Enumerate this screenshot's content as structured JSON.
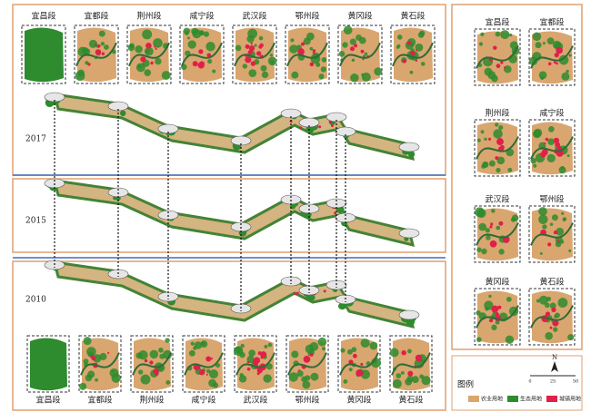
{
  "top_panels": {
    "labels": [
      "宜昌段",
      "宜都段",
      "荆州段",
      "咸宁段",
      "武汉段",
      "鄂州段",
      "黄冈段",
      "黄石段"
    ]
  },
  "bottom_panels": {
    "labels": [
      "宜昌段",
      "宜都段",
      "荆州段",
      "咸宁段",
      "武汉段",
      "鄂州段",
      "黄冈段",
      "黄石段"
    ]
  },
  "side_panels": {
    "labels": [
      "宜昌段",
      "宜都段",
      "荆州段",
      "咸宁段",
      "武汉段",
      "鄂州段",
      "黄冈段",
      "黄石段"
    ]
  },
  "years": [
    "2017",
    "2015",
    "2010"
  ],
  "legend": {
    "title": "图例",
    "items": [
      {
        "label": "农业用地",
        "color": "#d9a66f"
      },
      {
        "label": "生态用地",
        "color": "#2e8b2e"
      },
      {
        "label": "城镇用地",
        "color": "#e0204a"
      }
    ]
  },
  "scale_bar": {
    "north": "N",
    "ticks": [
      "0",
      "25",
      "50"
    ]
  }
}
